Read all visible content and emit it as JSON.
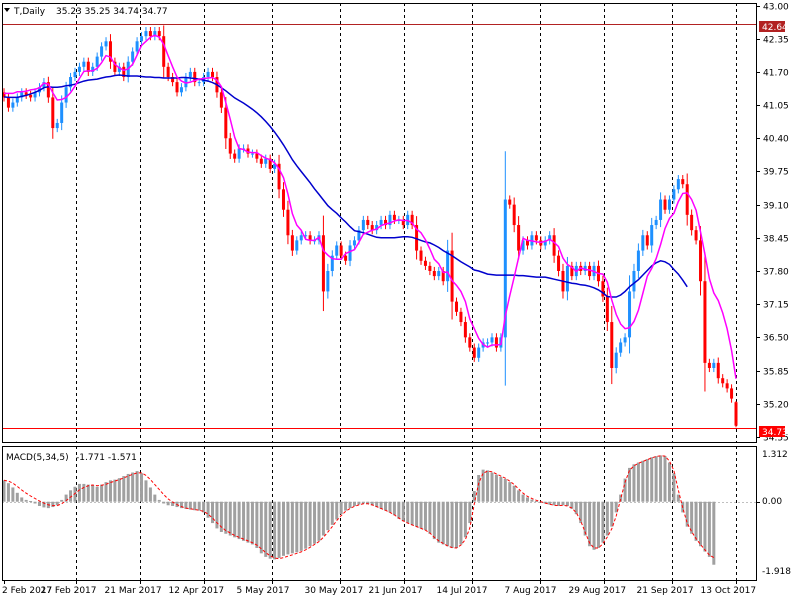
{
  "header": {
    "symbol_label": "T,Daily",
    "ohlc_text": "35.23 35.25 34.74 34.77"
  },
  "macd_header": {
    "label": "MACD(5,34,5)",
    "values_text": "-1.771 -1.571"
  },
  "colors": {
    "bull": "#1e90ff",
    "bear": "#ff0000",
    "ma_fast": "#ff00ff",
    "ma_slow": "#0000cd",
    "macd_bar": "#a0a0a0",
    "signal": "#ff0000",
    "hline": "#b22222",
    "grid": "#000000",
    "frame": "#000000"
  },
  "price_tags": {
    "resistance": "42.64",
    "current": "34.73"
  },
  "macd_tags": {
    "top": "1.312",
    "zero": "0.00",
    "bottom": "-1.918"
  },
  "chart_data": [
    {
      "type": "candlestick",
      "title": "T,Daily",
      "y_ticks": [
        "43.00",
        "42.35",
        "41.70",
        "41.05",
        "40.40",
        "39.75",
        "39.10",
        "38.45",
        "37.80",
        "37.15",
        "36.50",
        "35.85",
        "35.20",
        "34.55"
      ],
      "ylim": [
        34.45,
        43.05
      ],
      "x_ticks": [
        "2 Feb 2017",
        "27 Feb 2017",
        "21 Mar 2017",
        "12 Apr 2017",
        "5 May 2017",
        "30 May 2017",
        "21 Jun 2017",
        "14 Jul 2017",
        "7 Aug 2017",
        "29 Aug 2017",
        "21 Sep 2017",
        "13 Oct 2017"
      ],
      "horizontal_levels": [
        42.64,
        34.73
      ],
      "last_bar": {
        "open": 35.23,
        "high": 35.25,
        "low": 34.74,
        "close": 34.77
      },
      "series": [
        {
          "name": "close",
          "values": [
            41.2,
            41.0,
            41.1,
            41.2,
            41.3,
            41.25,
            41.2,
            41.3,
            41.4,
            41.5,
            41.2,
            40.6,
            40.7,
            41.1,
            41.4,
            41.6,
            41.7,
            41.8,
            41.9,
            41.7,
            41.8,
            42.0,
            42.2,
            42.3,
            41.9,
            41.7,
            41.8,
            41.6,
            41.9,
            42.1,
            42.3,
            42.4,
            42.5,
            42.4,
            42.5,
            42.4,
            41.8,
            41.6,
            41.5,
            41.3,
            41.4,
            41.6,
            41.7,
            41.5,
            41.5,
            41.6,
            41.7,
            41.6,
            41.3,
            41.0,
            40.4,
            40.1,
            40.0,
            40.2,
            40.2,
            40.1,
            40.1,
            40.0,
            39.9,
            40.0,
            39.8,
            39.9,
            39.4,
            39.0,
            38.5,
            38.2,
            38.4,
            38.5,
            38.5,
            38.4,
            38.4,
            38.5,
            37.4,
            37.8,
            38.1,
            38.3,
            38.1,
            38.0,
            38.3,
            38.4,
            38.6,
            38.8,
            38.7,
            38.6,
            38.7,
            38.8,
            38.7,
            38.9,
            38.8,
            38.8,
            38.7,
            38.9,
            38.7,
            38.2,
            38.0,
            37.9,
            37.8,
            37.7,
            37.8,
            37.6,
            38.2,
            37.2,
            37.0,
            36.8,
            36.5,
            36.3,
            36.1,
            36.3,
            36.4,
            36.4,
            36.5,
            36.3,
            36.5,
            39.2,
            39.1,
            38.7,
            38.2,
            38.4,
            38.3,
            38.5,
            38.4,
            38.3,
            38.4,
            38.5,
            38.1,
            37.8,
            37.4,
            37.9,
            37.7,
            37.9,
            37.8,
            37.9,
            37.7,
            37.9,
            37.6,
            37.3,
            36.8,
            35.9,
            36.2,
            36.4,
            36.5,
            37.4,
            37.8,
            38.2,
            38.5,
            38.3,
            38.7,
            38.8,
            39.2,
            39.0,
            39.2,
            39.4,
            39.6,
            39.5,
            38.9,
            38.6,
            38.4,
            37.6,
            36.0,
            35.9,
            36.0,
            35.7,
            35.6,
            35.5,
            35.3,
            34.77
          ]
        },
        {
          "name": "",
          "values": [
            41.28,
            41.28,
            41.28,
            41.31,
            41.31,
            41.32,
            41.35,
            41.36,
            41.39,
            41.48,
            41.46,
            41.29,
            41.15,
            41.16,
            41.2,
            41.29,
            41.42,
            41.57,
            41.71,
            41.72,
            41.72,
            41.77,
            41.88,
            42.02,
            41.99,
            41.85,
            41.78,
            41.73,
            41.76,
            41.85,
            42.03,
            42.22,
            42.3,
            42.38,
            42.42,
            42.38,
            42.24,
            42.02,
            41.8,
            41.6,
            41.52,
            41.48,
            41.5,
            41.53,
            41.56,
            41.57,
            41.58,
            41.59,
            41.54,
            41.41,
            41.1,
            40.77,
            40.42,
            40.2,
            40.18,
            40.13,
            40.12,
            40.12,
            40.06,
            40.01,
            39.98,
            39.92,
            39.8,
            39.63,
            39.31,
            38.92,
            38.7,
            38.6,
            38.42,
            38.4,
            38.4,
            38.46,
            38.2,
            38.11,
            38.04,
            38.03,
            38.03,
            38.14,
            38.18,
            38.22,
            38.36,
            38.52,
            38.56,
            38.6,
            38.62,
            38.69,
            38.72,
            38.74,
            38.78,
            38.8,
            38.79,
            38.79,
            38.74,
            38.62,
            38.55,
            38.41,
            38.23,
            38.03,
            37.94,
            37.77,
            37.78,
            37.61,
            37.52,
            37.4,
            37.2,
            36.86,
            36.67,
            36.48,
            36.36,
            36.31,
            36.35,
            36.35,
            36.36,
            36.92,
            37.31,
            37.68,
            38.06,
            38.44,
            38.4,
            38.39,
            38.37,
            38.36,
            38.38,
            38.42,
            38.36,
            38.28,
            38.05,
            37.93,
            37.87,
            37.79,
            37.86,
            37.83,
            37.82,
            37.79,
            37.75,
            37.74,
            37.58,
            37.23,
            36.95,
            36.76,
            36.67,
            36.69,
            36.81,
            37.03,
            37.36,
            37.7,
            37.85,
            38.04,
            38.32,
            38.63,
            38.83,
            38.93,
            39.16,
            39.32,
            39.33,
            39.2,
            38.99,
            38.57,
            38.13,
            37.65,
            37.37,
            37.22,
            36.98,
            36.67,
            36.24,
            35.69
          ]
        },
        {
          "name": "",
          "values": [
            41.21,
            41.2,
            41.2,
            41.2,
            41.22,
            41.24,
            41.27,
            41.3,
            41.34,
            41.39,
            41.41,
            41.4,
            41.4,
            41.41,
            41.43,
            41.44,
            41.46,
            41.49,
            41.52,
            41.54,
            41.55,
            41.56,
            41.58,
            41.6,
            41.61,
            41.63,
            41.64,
            41.63,
            41.62,
            41.62,
            41.62,
            41.61,
            41.6,
            41.6,
            41.59,
            41.59,
            41.58,
            41.58,
            41.58,
            41.58,
            41.59,
            41.59,
            41.58,
            41.57,
            41.56,
            41.54,
            41.52,
            41.49,
            41.45,
            41.39,
            41.33,
            41.26,
            41.19,
            41.14,
            41.09,
            41.03,
            40.97,
            40.9,
            40.82,
            40.73,
            40.63,
            40.52,
            40.4,
            40.27,
            40.13,
            39.98,
            39.86,
            39.75,
            39.64,
            39.53,
            39.41,
            39.3,
            39.19,
            39.08,
            39.0,
            38.93,
            38.84,
            38.76,
            38.67,
            38.59,
            38.57,
            38.55,
            38.52,
            38.49,
            38.46,
            38.45,
            38.45,
            38.45,
            38.45,
            38.46,
            38.47,
            38.47,
            38.46,
            38.43,
            38.4,
            38.37,
            38.35,
            38.31,
            38.26,
            38.2,
            38.15,
            38.1,
            38.04,
            37.98,
            37.93,
            37.88,
            37.82,
            37.8,
            37.77,
            37.74,
            37.73,
            37.72,
            37.72,
            37.72,
            37.72,
            37.72,
            37.71,
            37.71,
            37.7,
            37.69,
            37.68,
            37.68,
            37.68,
            37.66,
            37.64,
            37.62,
            37.6,
            37.58,
            37.56,
            37.55,
            37.53,
            37.52,
            37.5,
            37.47,
            37.43,
            37.37,
            37.3,
            37.29,
            37.29,
            37.33,
            37.4,
            37.49,
            37.56,
            37.63,
            37.72,
            37.81,
            37.9,
            37.96,
            38.0,
            37.98,
            37.93,
            37.83,
            37.74,
            37.62,
            37.49
          ]
        },
        {
          "name": "",
          "values": [
            0.6,
            0.52,
            0.4,
            0.25,
            0.12,
            0.05,
            0.02,
            -0.05,
            -0.12,
            -0.16,
            -0.18,
            -0.15,
            -0.1,
            0.05,
            0.2,
            0.32,
            0.42,
            0.5,
            0.5,
            0.48,
            0.46,
            0.42,
            0.48,
            0.55,
            0.6,
            0.62,
            0.66,
            0.72,
            0.78,
            0.82,
            0.86,
            0.8,
            0.6,
            0.4,
            0.2,
            0.05,
            -0.05,
            -0.1,
            -0.12,
            -0.15,
            -0.18,
            -0.2,
            -0.22,
            -0.24,
            -0.25,
            -0.3,
            -0.45,
            -0.6,
            -0.75,
            -0.85,
            -0.9,
            -0.95,
            -1.0,
            -1.05,
            -1.1,
            -1.15,
            -1.2,
            -1.3,
            -1.45,
            -1.55,
            -1.6,
            -1.62,
            -1.58,
            -1.52,
            -1.48,
            -1.45,
            -1.42,
            -1.38,
            -1.32,
            -1.25,
            -1.18,
            -1.1,
            -0.95,
            -0.8,
            -0.65,
            -0.5,
            -0.35,
            -0.25,
            -0.18,
            -0.12,
            -0.08,
            -0.05,
            -0.06,
            -0.1,
            -0.15,
            -0.2,
            -0.25,
            -0.3,
            -0.38,
            -0.48,
            -0.55,
            -0.6,
            -0.65,
            -0.7,
            -0.75,
            -0.8,
            -0.9,
            -1.05,
            -1.15,
            -1.2,
            -1.25,
            -1.3,
            -1.3,
            -1.2,
            -1.0,
            -0.6,
            0.3,
            0.75,
            0.9,
            0.88,
            0.82,
            0.76,
            0.7,
            0.64,
            0.55,
            0.45,
            0.32,
            0.2,
            0.12,
            0.06,
            0.02,
            -0.02,
            -0.05,
            -0.08,
            -0.1,
            -0.12,
            -0.1,
            -0.12,
            -0.2,
            -0.35,
            -0.6,
            -0.95,
            -1.25,
            -1.35,
            -1.3,
            -1.15,
            -0.95,
            -0.7,
            -0.3,
            0.2,
            0.65,
            0.95,
            1.05,
            1.1,
            1.15,
            1.2,
            1.25,
            1.28,
            1.3,
            1.28,
            1.1,
            0.8,
            0.2,
            -0.3,
            -0.7,
            -0.9,
            -1.1,
            -1.25,
            -1.4,
            -1.55,
            -1.77
          ]
        },
        {
          "name": "",
          "values": [
            0.6,
            0.58,
            0.52,
            0.43,
            0.33,
            0.24,
            0.16,
            0.09,
            0.02,
            -0.04,
            -0.09,
            -0.11,
            -0.11,
            -0.06,
            0.03,
            0.13,
            0.23,
            0.33,
            0.4,
            0.45,
            0.47,
            0.45,
            0.46,
            0.49,
            0.54,
            0.58,
            0.62,
            0.67,
            0.72,
            0.77,
            0.81,
            0.81,
            0.74,
            0.62,
            0.48,
            0.34,
            0.2,
            0.08,
            -0.01,
            -0.08,
            -0.14,
            -0.18,
            -0.2,
            -0.22,
            -0.24,
            -0.27,
            -0.35,
            -0.46,
            -0.59,
            -0.71,
            -0.81,
            -0.88,
            -0.95,
            -1.0,
            -1.05,
            -1.1,
            -1.15,
            -1.22,
            -1.32,
            -1.43,
            -1.52,
            -1.58,
            -1.6,
            -1.57,
            -1.53,
            -1.49,
            -1.45,
            -1.41,
            -1.35,
            -1.28,
            -1.2,
            -1.12,
            -1.0,
            -0.85,
            -0.7,
            -0.53,
            -0.39,
            -0.27,
            -0.19,
            -0.13,
            -0.09,
            -0.06,
            -0.06,
            -0.09,
            -0.14,
            -0.19,
            -0.24,
            -0.3,
            -0.37,
            -0.46,
            -0.54,
            -0.6,
            -0.65,
            -0.7,
            -0.75,
            -0.8,
            -0.88,
            -1.0,
            -1.1,
            -1.17,
            -1.24,
            -1.29,
            -1.3,
            -1.22,
            -1.06,
            -0.74,
            -0.06,
            0.52,
            0.8,
            0.86,
            0.84,
            0.78,
            0.72,
            0.66,
            0.58,
            0.48,
            0.36,
            0.24,
            0.15,
            0.09,
            0.04,
            0.0,
            -0.04,
            -0.07,
            -0.1,
            -0.11,
            -0.1,
            -0.12,
            -0.18,
            -0.31,
            -0.54,
            -0.86,
            -1.16,
            -1.3,
            -1.3,
            -1.18,
            -0.99,
            -0.76,
            -0.4,
            0.08,
            0.55,
            0.88,
            1.01,
            1.08,
            1.13,
            1.18,
            1.23,
            1.27,
            1.29,
            1.28,
            1.14,
            0.87,
            0.33,
            -0.18,
            -0.6,
            -0.84,
            -1.04,
            -1.2,
            -1.35,
            -1.5,
            -1.57
          ]
        }
      ]
    }
  ]
}
